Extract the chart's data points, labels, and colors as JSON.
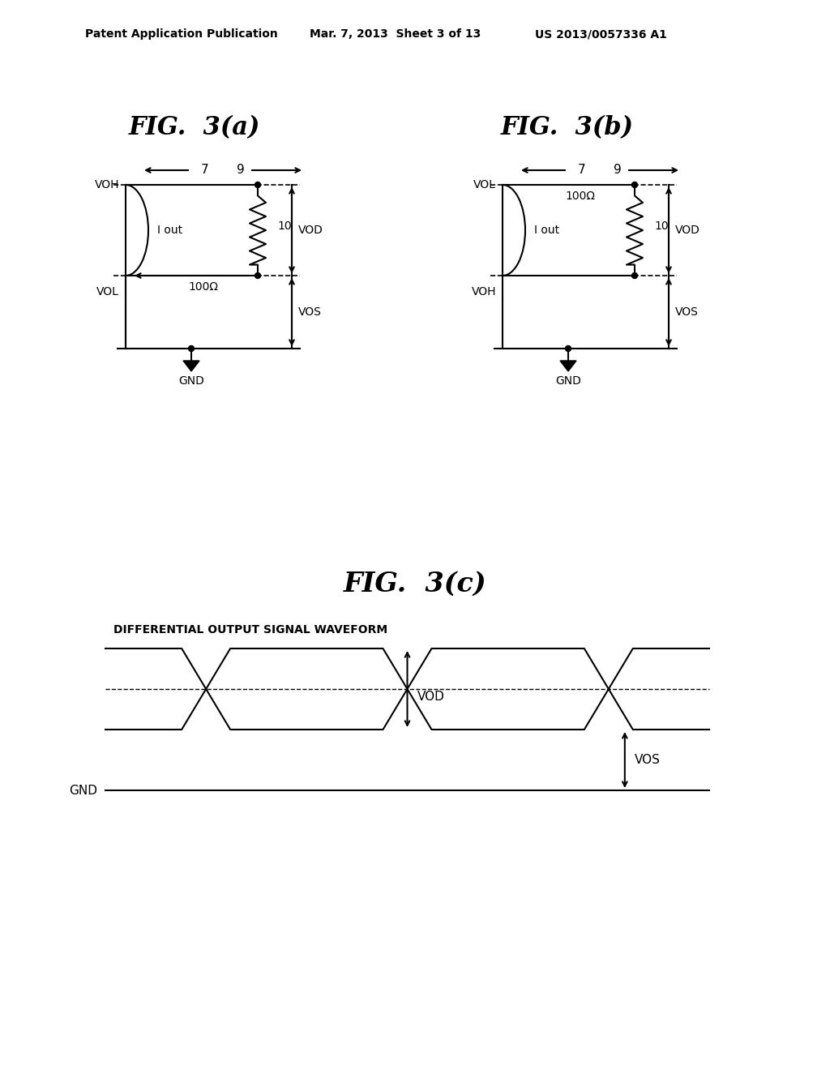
{
  "bg_color": "#ffffff",
  "text_color": "#000000",
  "header_left": "Patent Application Publication",
  "header_mid": "Mar. 7, 2013  Sheet 3 of 13",
  "header_right": "US 2013/0057336 A1",
  "fig3a_title": "FIG.  3(a)",
  "fig3b_title": "FIG.  3(b)",
  "fig3c_title": "FIG.  3(c)",
  "fig3c_subtitle": "DIFFERENTIAL OUTPUT SIGNAL WAVEFORM"
}
